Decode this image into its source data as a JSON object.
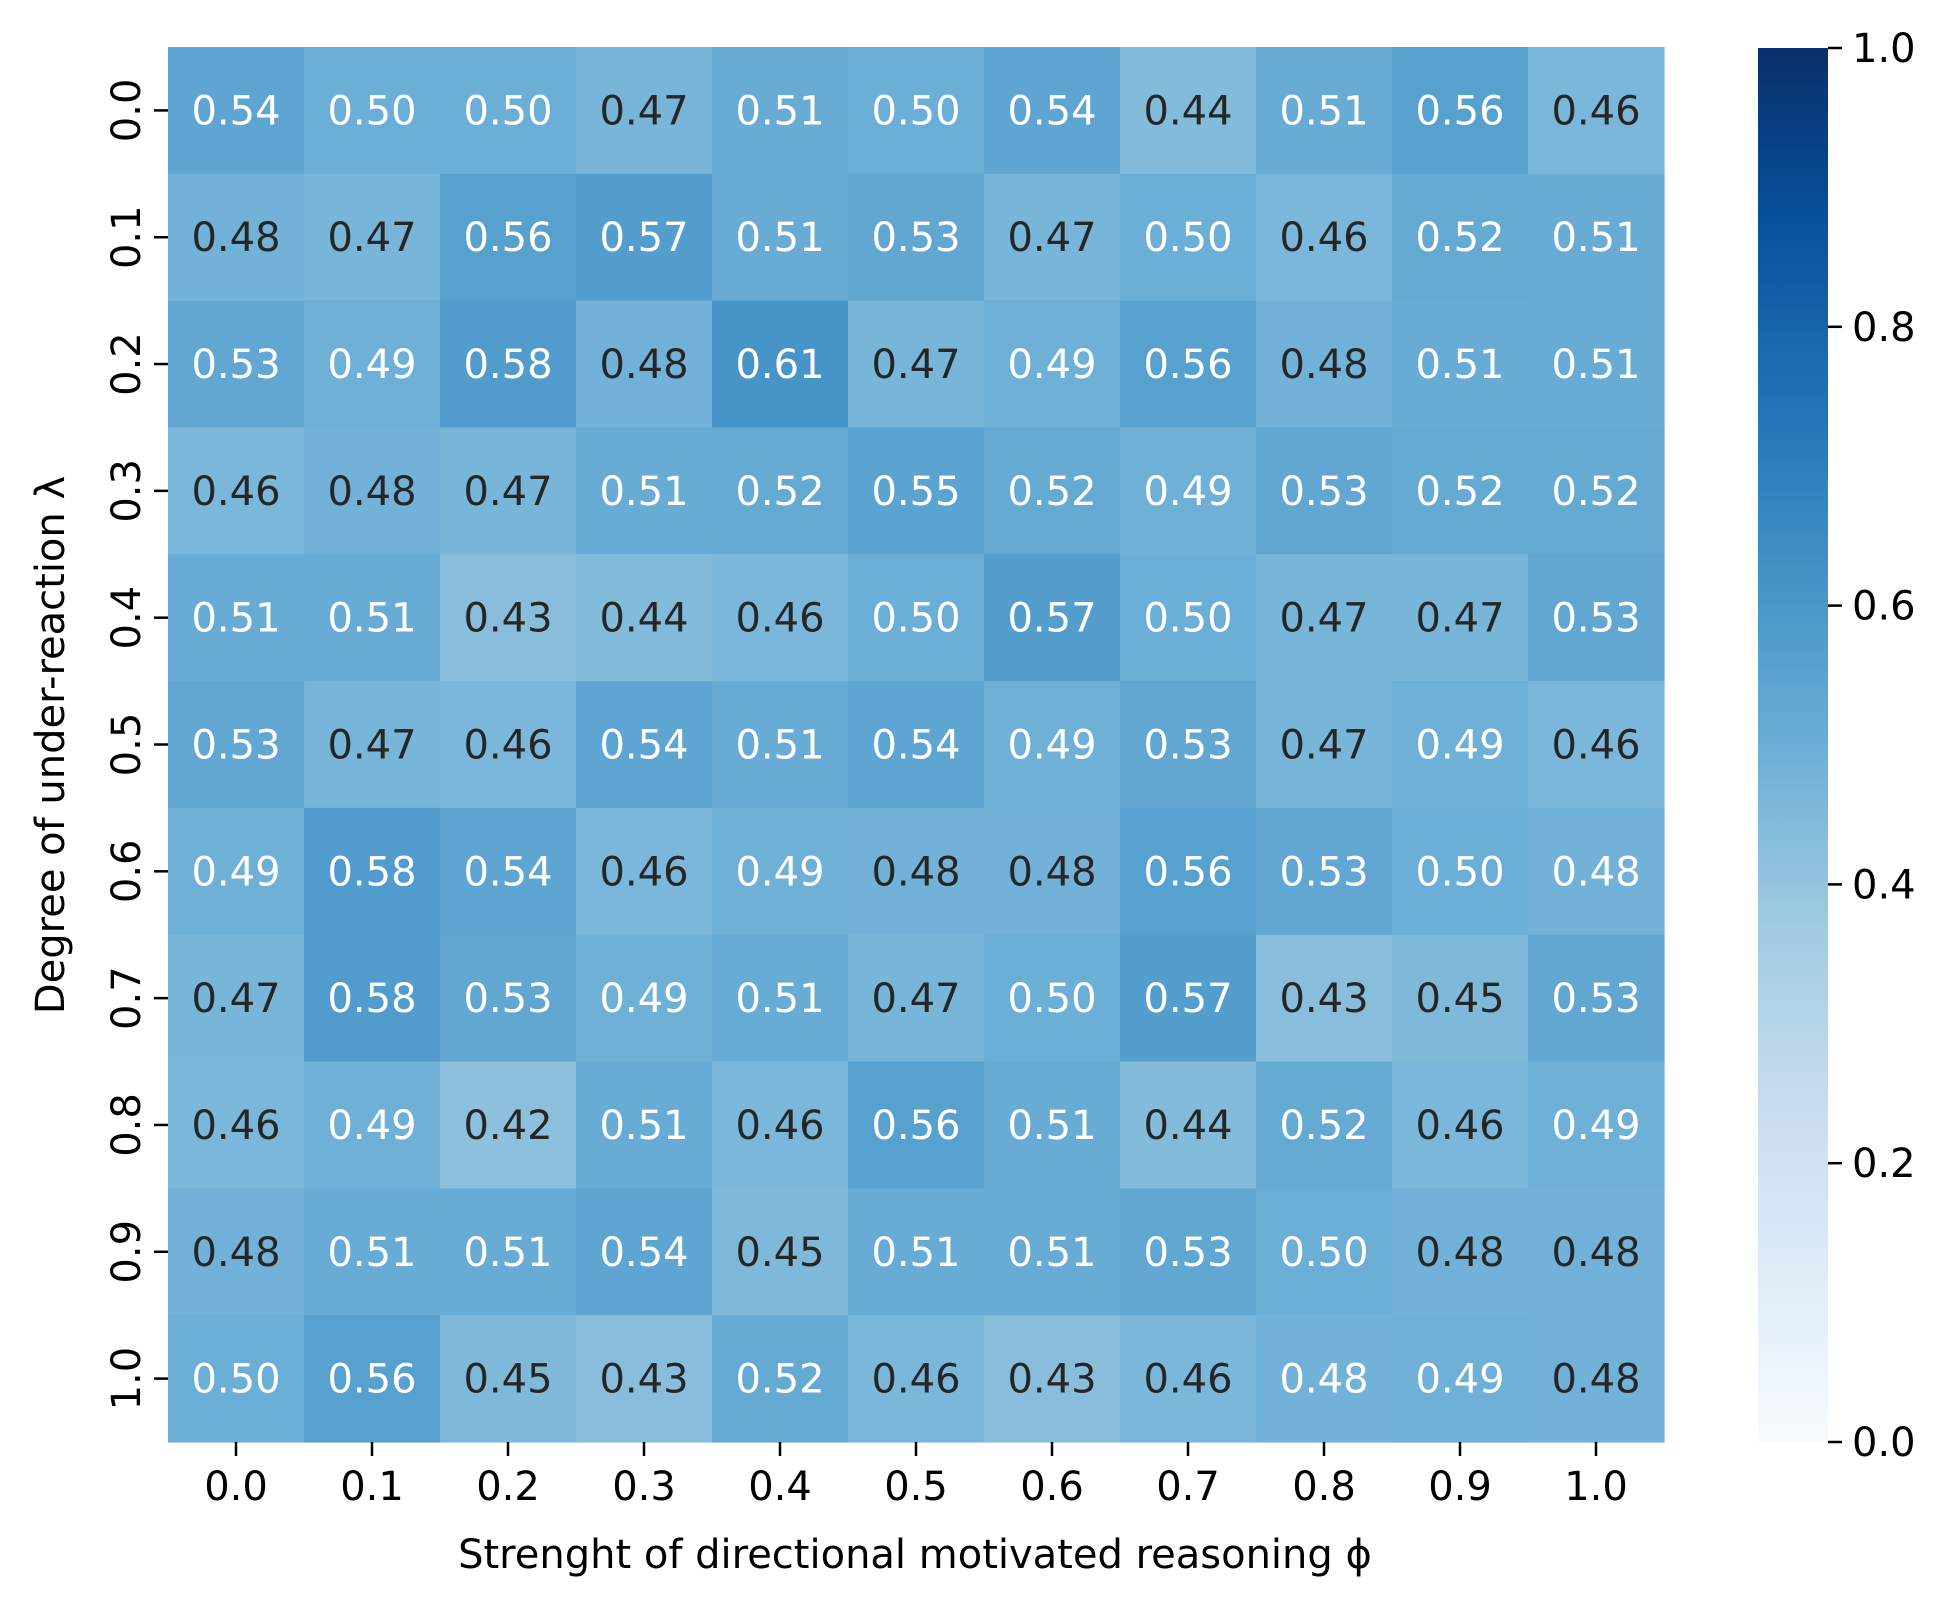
{
  "chart_data": {
    "type": "heatmap",
    "title": "",
    "xlabel": "Strenght of directional motivated reasoning ϕ",
    "ylabel": "Degree of under-reaction λ",
    "x_ticks": [
      "0.0",
      "0.1",
      "0.2",
      "0.3",
      "0.4",
      "0.5",
      "0.6",
      "0.7",
      "0.8",
      "0.9",
      "1.0"
    ],
    "y_ticks": [
      "0.0",
      "0.1",
      "0.2",
      "0.3",
      "0.4",
      "0.5",
      "0.6",
      "0.7",
      "0.8",
      "0.9",
      "1.0"
    ],
    "values": [
      [
        0.54,
        0.5,
        0.5,
        0.47,
        0.51,
        0.5,
        0.54,
        0.44,
        0.51,
        0.56,
        0.46
      ],
      [
        0.48,
        0.47,
        0.56,
        0.57,
        0.51,
        0.53,
        0.47,
        0.5,
        0.46,
        0.52,
        0.51
      ],
      [
        0.53,
        0.49,
        0.58,
        0.48,
        0.61,
        0.47,
        0.49,
        0.56,
        0.48,
        0.51,
        0.51
      ],
      [
        0.46,
        0.48,
        0.47,
        0.51,
        0.52,
        0.55,
        0.52,
        0.49,
        0.53,
        0.52,
        0.52
      ],
      [
        0.51,
        0.51,
        0.43,
        0.44,
        0.46,
        0.5,
        0.57,
        0.5,
        0.47,
        0.47,
        0.53
      ],
      [
        0.53,
        0.47,
        0.46,
        0.54,
        0.51,
        0.54,
        0.49,
        0.53,
        0.47,
        0.49,
        0.46
      ],
      [
        0.49,
        0.58,
        0.54,
        0.46,
        0.49,
        0.48,
        0.48,
        0.56,
        0.53,
        0.5,
        0.48
      ],
      [
        0.47,
        0.58,
        0.53,
        0.49,
        0.51,
        0.47,
        0.5,
        0.57,
        0.43,
        0.45,
        0.53
      ],
      [
        0.46,
        0.49,
        0.42,
        0.51,
        0.46,
        0.56,
        0.51,
        0.44,
        0.52,
        0.46,
        0.49
      ],
      [
        0.48,
        0.51,
        0.51,
        0.54,
        0.45,
        0.51,
        0.51,
        0.53,
        0.5,
        0.48,
        0.48
      ],
      [
        0.5,
        0.56,
        0.45,
        0.43,
        0.52,
        0.46,
        0.43,
        0.46,
        0.48,
        0.49,
        0.48
      ]
    ],
    "label_color": {
      "white": [
        [
          0,
          1,
          2,
          4,
          5,
          6,
          8,
          9
        ],
        [
          2,
          3,
          4,
          5,
          7,
          9,
          10
        ],
        [
          0,
          1,
          2,
          4,
          6,
          7,
          9,
          10
        ],
        [
          3,
          4,
          5,
          6,
          7,
          8,
          9,
          10
        ],
        [
          0,
          1,
          5,
          6,
          7,
          10
        ],
        [
          0,
          3,
          4,
          5,
          6,
          7,
          9
        ],
        [
          0,
          1,
          2,
          4,
          7,
          8,
          9,
          10
        ],
        [
          1,
          2,
          3,
          4,
          6,
          7,
          10
        ],
        [
          1,
          3,
          5,
          6,
          8,
          10
        ],
        [
          1,
          2,
          3,
          5,
          6,
          7,
          8
        ],
        [
          0,
          1,
          4,
          8,
          9
        ]
      ]
    },
    "colormap": "Blues",
    "vmin": 0.0,
    "vmax": 1.0,
    "colorbar_ticks": [
      "0.0",
      "0.2",
      "0.4",
      "0.6",
      "0.8",
      "1.0"
    ],
    "dark_text_color": "#262626",
    "light_text_color": "#ffffff"
  }
}
